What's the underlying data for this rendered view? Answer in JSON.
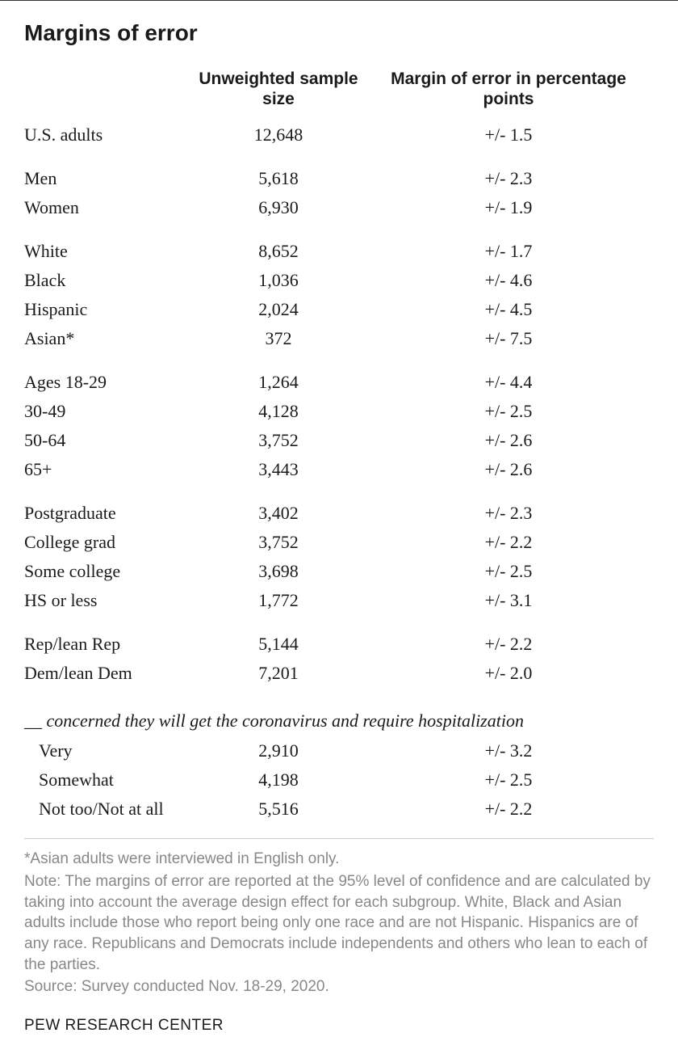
{
  "title": "Margins of error",
  "columns": {
    "sample": "Unweighted sample size",
    "moe": "Margin of error in percentage points"
  },
  "groups": [
    {
      "rows": [
        {
          "label": "U.S. adults",
          "sample": "12,648",
          "moe": "+/- 1.5"
        }
      ]
    },
    {
      "rows": [
        {
          "label": "Men",
          "sample": "5,618",
          "moe": "+/- 2.3"
        },
        {
          "label": "Women",
          "sample": "6,930",
          "moe": "+/- 1.9"
        }
      ]
    },
    {
      "rows": [
        {
          "label": "White",
          "sample": "8,652",
          "moe": "+/- 1.7"
        },
        {
          "label": "Black",
          "sample": "1,036",
          "moe": "+/- 4.6"
        },
        {
          "label": "Hispanic",
          "sample": "2,024",
          "moe": "+/- 4.5"
        },
        {
          "label": "Asian*",
          "sample": "372",
          "moe": "+/- 7.5"
        }
      ]
    },
    {
      "rows": [
        {
          "label": "Ages 18-29",
          "sample": "1,264",
          "moe": "+/- 4.4"
        },
        {
          "label": "30-49",
          "sample": "4,128",
          "moe": "+/- 2.5"
        },
        {
          "label": "50-64",
          "sample": "3,752",
          "moe": "+/- 2.6"
        },
        {
          "label": "65+",
          "sample": "3,443",
          "moe": "+/- 2.6"
        }
      ]
    },
    {
      "rows": [
        {
          "label": "Postgraduate",
          "sample": "3,402",
          "moe": "+/- 2.3"
        },
        {
          "label": "College grad",
          "sample": "3,752",
          "moe": "+/- 2.2"
        },
        {
          "label": "Some college",
          "sample": "3,698",
          "moe": "+/- 2.5"
        },
        {
          "label": "HS or less",
          "sample": "1,772",
          "moe": "+/- 3.1"
        }
      ]
    },
    {
      "rows": [
        {
          "label": "Rep/lean Rep",
          "sample": "5,144",
          "moe": "+/- 2.2"
        },
        {
          "label": "Dem/lean Dem",
          "sample": "7,201",
          "moe": "+/- 2.0"
        }
      ]
    }
  ],
  "subhead": "__ concerned they will get the coronavirus and require hospitalization",
  "subrows": [
    {
      "label": "Very",
      "sample": "2,910",
      "moe": "+/- 3.2"
    },
    {
      "label": "Somewhat",
      "sample": "4,198",
      "moe": "+/- 2.5"
    },
    {
      "label": "Not too/Not at all",
      "sample": "5,516",
      "moe": "+/- 2.2"
    }
  ],
  "footnotes": [
    "*Asian adults were interviewed in English only.",
    "Note: The margins of error are reported at the 95% level of confidence and are calculated by taking into account the average design effect for each subgroup. White, Black and Asian adults include those who report being only one race and are not Hispanic. Hispanics are of any race. Republicans and Democrats include independents and others who lean to each of the parties.",
    "Source: Survey conducted Nov. 18-29, 2020."
  ],
  "attribution": "PEW RESEARCH CENTER"
}
